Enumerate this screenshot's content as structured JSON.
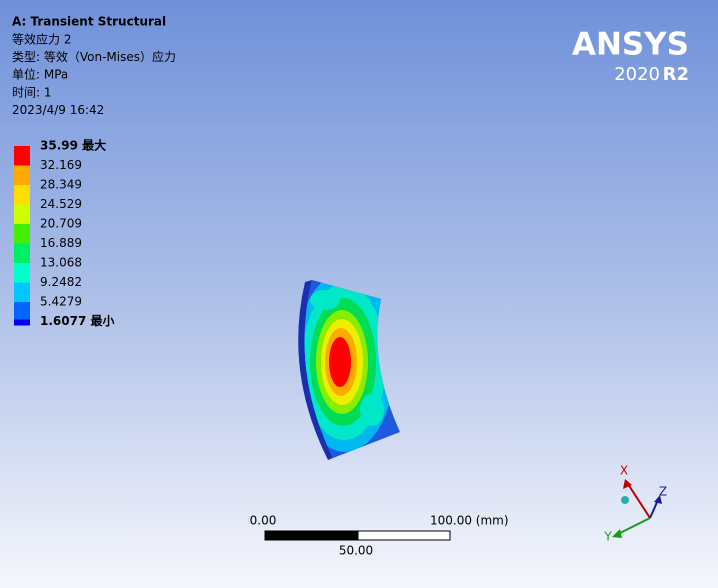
{
  "header": {
    "title": "A: Transient Structural",
    "lines": [
      "等效应力 2",
      "类型: 等效（Von-Mises）应力",
      "单位: MPa",
      "时间: 1",
      "2023/4/9 16:42"
    ]
  },
  "legend": {
    "labels": [
      "35.99 最大",
      "32.169",
      "28.349",
      "24.529",
      "20.709",
      "16.889",
      "13.068",
      "9.2482",
      "5.4279",
      "1.6077 最小"
    ]
  },
  "logo": {
    "name": "ANSYS",
    "year": "2020",
    "release": "R2"
  },
  "scale_bar": {
    "start": "0.00",
    "end": "100.00 (mm)",
    "middle": "50.00"
  },
  "triad": {
    "x": "X",
    "y": "Y",
    "z": "Z"
  }
}
